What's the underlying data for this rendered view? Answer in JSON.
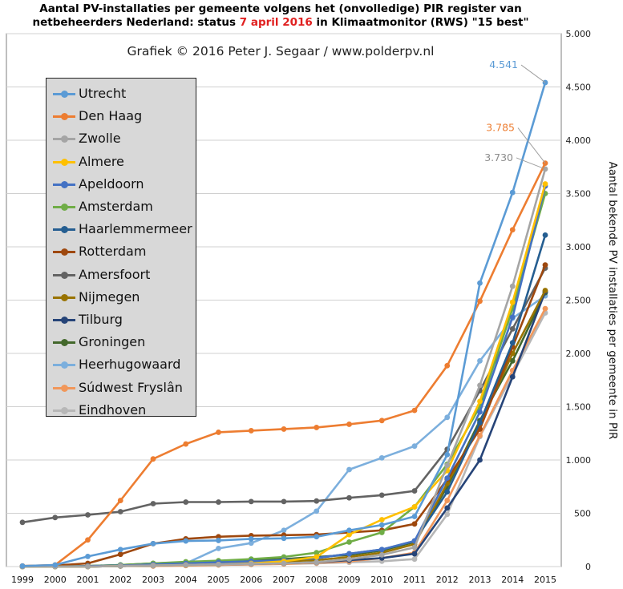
{
  "title_part1": "Aantal PV-installaties per gemeente volgens het (onvolledige) PIR register van",
  "title_part2a": "netbeheerders Nederland: status ",
  "title_part2b": "7 april 2016",
  "title_part2c": " in Klimaatmonitor (RWS) \"15 best\"",
  "title_highlight_color": "#e02020",
  "chart_data": {
    "type": "line",
    "subtitle": "Grafiek © 2016 Peter J. Segaar / www.polderpv.nl",
    "ylabel": "Aantal bekende PV installaties per gemeente in PIR",
    "xlabel": "",
    "x": [
      "1999",
      "2000",
      "2001",
      "2002",
      "2003",
      "2004",
      "2005",
      "2006",
      "2007",
      "2008",
      "2009",
      "2010",
      "2011",
      "2012",
      "2013",
      "2014",
      "2015"
    ],
    "ylim": [
      0,
      5000
    ],
    "yticks": [
      0,
      500,
      1000,
      1500,
      2000,
      2500,
      3000,
      3500,
      4000,
      4500,
      5000
    ],
    "ytick_labels": [
      "0",
      "500",
      "1.000",
      "1.500",
      "2.000",
      "2.500",
      "3.000",
      "3.500",
      "4.000",
      "4.500",
      "5.000"
    ],
    "y_axis_side": "right",
    "grid": true,
    "legend_position": "top-left",
    "series": [
      {
        "name": "Utrecht",
        "color": "#5b9bd5",
        "values": [
          5,
          15,
          95,
          160,
          215,
          240,
          245,
          260,
          265,
          280,
          340,
          390,
          470,
          1050,
          2660,
          3510,
          4541
        ]
      },
      {
        "name": "Den Haag",
        "color": "#ed7d31",
        "values": [
          5,
          15,
          250,
          620,
          1010,
          1150,
          1260,
          1275,
          1290,
          1305,
          1335,
          1370,
          1465,
          1885,
          2490,
          3160,
          3785
        ]
      },
      {
        "name": "Zwolle",
        "color": "#a5a5a5",
        "values": [
          0,
          0,
          0,
          5,
          10,
          15,
          20,
          25,
          30,
          40,
          70,
          110,
          180,
          950,
          1700,
          2630,
          3730
        ]
      },
      {
        "name": "Almere",
        "color": "#ffc000",
        "values": [
          0,
          0,
          0,
          5,
          10,
          15,
          20,
          30,
          50,
          90,
          300,
          440,
          560,
          900,
          1550,
          2480,
          3590
        ]
      },
      {
        "name": "Apeldoorn",
        "color": "#4472c4",
        "values": [
          0,
          0,
          5,
          10,
          20,
          30,
          40,
          50,
          60,
          80,
          120,
          160,
          240,
          830,
          1450,
          2340,
          3570
        ]
      },
      {
        "name": "Amsterdam",
        "color": "#70ad47",
        "values": [
          0,
          0,
          5,
          15,
          30,
          45,
          55,
          70,
          90,
          130,
          230,
          320,
          560,
          960,
          1500,
          2420,
          3500
        ]
      },
      {
        "name": "Haarlemmermeer",
        "color": "#255e91",
        "values": [
          0,
          0,
          0,
          5,
          10,
          20,
          30,
          40,
          60,
          80,
          120,
          160,
          240,
          700,
          1350,
          2100,
          3110
        ]
      },
      {
        "name": "Rotterdam",
        "color": "#9e480e",
        "values": [
          5,
          10,
          30,
          115,
          215,
          260,
          280,
          290,
          295,
          300,
          320,
          340,
          400,
          820,
          1290,
          2060,
          2830
        ]
      },
      {
        "name": "Amersfoort",
        "color": "#636363",
        "values": [
          415,
          460,
          485,
          515,
          590,
          605,
          605,
          610,
          610,
          615,
          645,
          670,
          710,
          1100,
          1650,
          2230,
          2800
        ]
      },
      {
        "name": "Nijmegen",
        "color": "#997300",
        "values": [
          0,
          0,
          0,
          5,
          10,
          20,
          30,
          40,
          50,
          60,
          90,
          130,
          210,
          780,
          1330,
          2000,
          2590
        ]
      },
      {
        "name": "Tilburg",
        "color": "#264478",
        "values": [
          0,
          0,
          0,
          5,
          10,
          15,
          20,
          25,
          30,
          40,
          60,
          80,
          120,
          550,
          1000,
          1780,
          2580
        ]
      },
      {
        "name": "Groningen",
        "color": "#43682b",
        "values": [
          0,
          0,
          5,
          15,
          30,
          40,
          50,
          60,
          70,
          90,
          110,
          150,
          230,
          750,
          1370,
          1930,
          2570
        ]
      },
      {
        "name": "Heerhugowaard",
        "color": "#7cafdd",
        "values": [
          0,
          0,
          0,
          5,
          10,
          30,
          170,
          220,
          340,
          520,
          910,
          1020,
          1130,
          1400,
          1930,
          2330,
          2540
        ]
      },
      {
        "name": "Súdwest Fryslân",
        "color": "#f1975a",
        "values": [
          0,
          0,
          0,
          5,
          5,
          10,
          15,
          20,
          25,
          35,
          50,
          80,
          130,
          620,
          1230,
          1840,
          2420
        ]
      },
      {
        "name": "Eindhoven",
        "color": "#b7b7b7",
        "values": [
          0,
          0,
          0,
          5,
          5,
          10,
          15,
          20,
          25,
          30,
          40,
          50,
          70,
          490,
          1220,
          1800,
          2380
        ]
      }
    ],
    "annotations": [
      {
        "label": "4.541",
        "series": "Utrecht",
        "color": "#5b9bd5"
      },
      {
        "label": "3.785",
        "series": "Den Haag",
        "color": "#ed7d31"
      },
      {
        "label": "3.730",
        "series": "Zwolle",
        "color": "#8c8c8c"
      }
    ]
  }
}
